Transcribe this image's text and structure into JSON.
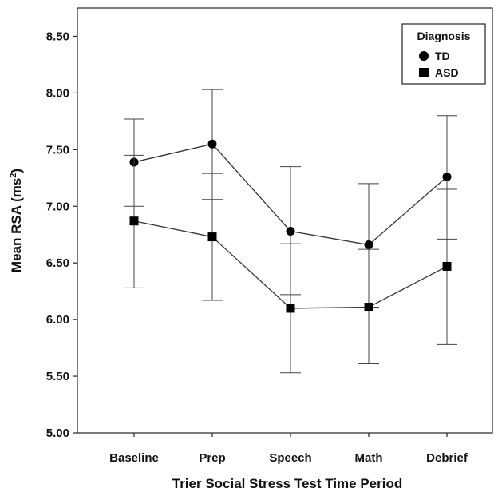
{
  "chart_data": {
    "type": "line",
    "xlabel": "Trier Social Stress Test Time Period",
    "ylabel_main": "Mean RSA (ms",
    "ylabel_sup": "2",
    "ylabel_end": ")",
    "categories": [
      "Baseline",
      "Prep",
      "Speech",
      "Math",
      "Debrief"
    ],
    "ylim": [
      5.0,
      8.75
    ],
    "yticks": [
      "5.00",
      "5.50",
      "6.00",
      "6.50",
      "7.00",
      "7.50",
      "8.00",
      "8.50"
    ],
    "grid": false,
    "legend": {
      "title": "Diagnosis",
      "position": "top-right"
    },
    "series": [
      {
        "name": "TD",
        "marker": "circle",
        "values": [
          7.39,
          7.55,
          6.78,
          6.66,
          7.26
        ],
        "err_low": [
          7.0,
          7.06,
          6.22,
          6.11,
          6.71
        ],
        "err_high": [
          7.77,
          8.03,
          7.35,
          7.2,
          7.8
        ]
      },
      {
        "name": "ASD",
        "marker": "square",
        "values": [
          6.87,
          6.73,
          6.1,
          6.11,
          6.47
        ],
        "err_low": [
          6.28,
          6.17,
          5.53,
          5.61,
          5.78
        ],
        "err_high": [
          7.45,
          7.29,
          6.67,
          6.62,
          7.15
        ]
      }
    ]
  }
}
